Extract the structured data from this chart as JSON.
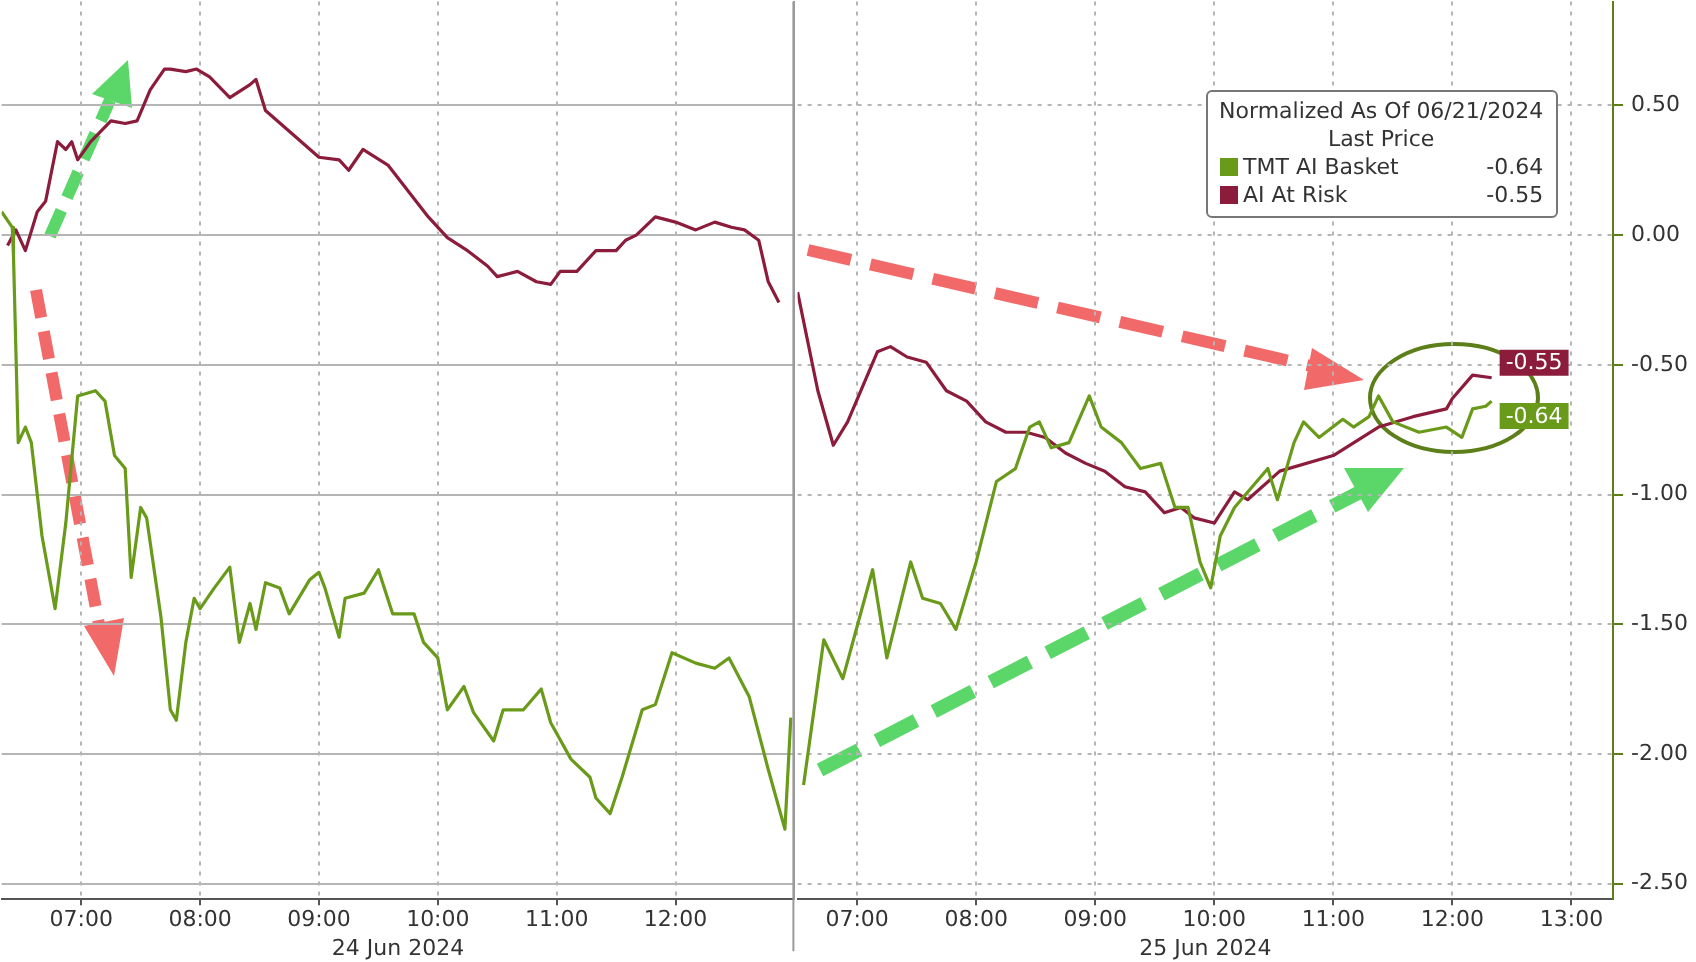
{
  "chart_data": [
    {
      "type": "line",
      "xlabel": "24 Jun 2024",
      "grid": true,
      "marker": "none",
      "line_style": "solid",
      "tick_labels": "x",
      "xlim": [
        6.33,
        13.0
      ],
      "ylim": [
        -2.56,
        0.9
      ],
      "xticks": [
        {
          "value": 7,
          "label": "07:00"
        },
        {
          "value": 8,
          "label": "08:00"
        },
        {
          "value": 9,
          "label": "09:00"
        },
        {
          "value": 10,
          "label": "10:00"
        },
        {
          "value": 11,
          "label": "11:00"
        },
        {
          "value": 12,
          "label": "12:00"
        }
      ],
      "yticks": [
        0.5,
        0,
        -0.5,
        -1,
        -1.5,
        -2,
        -2.5
      ],
      "series": [
        {
          "color": "#6a9a1a",
          "x": [
            6.33,
            6.42,
            6.43,
            6.47,
            6.53,
            6.58,
            6.67,
            6.78,
            6.87,
            6.97,
            7.12,
            7.2,
            7.28,
            7.37,
            7.42,
            7.5,
            7.55,
            7.67,
            7.75,
            7.8,
            7.88,
            7.95,
            8.0,
            8.12,
            8.25,
            8.33,
            8.42,
            8.47,
            8.55,
            8.67,
            8.75,
            8.92,
            9.0,
            9.05,
            9.17,
            9.22,
            9.38,
            9.5,
            9.62,
            9.8,
            9.88,
            10.0,
            10.08,
            10.22,
            10.3,
            10.47,
            10.55,
            10.72,
            10.87,
            10.95,
            11.12,
            11.28,
            11.33,
            11.45,
            11.55,
            11.72,
            11.83,
            11.97,
            12.17,
            12.33,
            12.45,
            12.62,
            12.78,
            12.92,
            12.97
          ],
          "values": [
            0.09,
            0.03,
            -0.08,
            -0.8,
            -0.74,
            -0.8,
            -1.16,
            -1.44,
            -1.11,
            -0.62,
            -0.6,
            -0.64,
            -0.85,
            -0.9,
            -1.32,
            -1.05,
            -1.09,
            -1.47,
            -1.83,
            -1.87,
            -1.57,
            -1.4,
            -1.44,
            -1.36,
            -1.28,
            -1.57,
            -1.42,
            -1.52,
            -1.34,
            -1.36,
            -1.46,
            -1.33,
            -1.3,
            -1.36,
            -1.55,
            -1.4,
            -1.38,
            -1.29,
            -1.46,
            -1.46,
            -1.57,
            -1.63,
            -1.83,
            -1.74,
            -1.84,
            -1.95,
            -1.83,
            -1.83,
            -1.75,
            -1.88,
            -2.02,
            -2.09,
            -2.17,
            -2.23,
            -2.09,
            -1.83,
            -1.81,
            -1.61,
            -1.65,
            -1.67,
            -1.63,
            -1.78,
            -2.06,
            -2.29,
            -1.86
          ]
        },
        {
          "color": "#8c1c3c",
          "x": [
            6.38,
            6.45,
            6.53,
            6.63,
            6.7,
            6.8,
            6.87,
            6.92,
            6.97,
            7.08,
            7.25,
            7.37,
            7.47,
            7.58,
            7.7,
            7.75,
            7.88,
            7.97,
            8.08,
            8.25,
            8.42,
            8.47,
            8.55,
            8.75,
            9.0,
            9.17,
            9.25,
            9.37,
            9.58,
            9.75,
            9.92,
            10.08,
            10.25,
            10.42,
            10.5,
            10.67,
            10.83,
            10.95,
            11.03,
            11.17,
            11.33,
            11.5,
            11.58,
            11.67,
            11.83,
            12.0,
            12.17,
            12.33,
            12.47,
            12.58,
            12.7,
            12.78,
            12.87
          ],
          "values": [
            -0.04,
            0.02,
            -0.06,
            0.09,
            0.13,
            0.36,
            0.33,
            0.36,
            0.29,
            0.36,
            0.44,
            0.43,
            0.44,
            0.56,
            0.64,
            0.64,
            0.63,
            0.64,
            0.61,
            0.53,
            0.58,
            0.6,
            0.48,
            0.4,
            0.3,
            0.29,
            0.25,
            0.33,
            0.27,
            0.17,
            0.07,
            -0.01,
            -0.06,
            -0.12,
            -0.16,
            -0.14,
            -0.18,
            -0.19,
            -0.14,
            -0.14,
            -0.06,
            -0.06,
            -0.02,
            0,
            0.07,
            0.05,
            0.02,
            0.05,
            0.03,
            0.02,
            -0.02,
            -0.18,
            -0.26
          ]
        }
      ]
    },
    {
      "type": "line",
      "xlabel": "25 Jun 2024",
      "legend_title": "Normalized As Of 06/21/2024\nLast Price",
      "legend": "top right",
      "grid": true,
      "marker": "none",
      "line_style": "solid",
      "xlim": [
        6.5,
        13.35
      ],
      "ylim": [
        -2.56,
        0.9
      ],
      "xticks": [
        {
          "value": 7,
          "label": "07:00"
        },
        {
          "value": 8,
          "label": "08:00"
        },
        {
          "value": 9,
          "label": "09:00"
        },
        {
          "value": 10,
          "label": "10:00"
        },
        {
          "value": 11,
          "label": "11:00"
        },
        {
          "value": 12,
          "label": "12:00"
        },
        {
          "value": 13,
          "label": "13:00"
        }
      ],
      "yticks": [
        {
          "value": 0.5,
          "label": "0.50"
        },
        {
          "value": 0,
          "label": "0.00"
        },
        {
          "value": -0.5,
          "label": "-0.50"
        },
        {
          "value": -1,
          "label": "-1.00"
        },
        {
          "value": -1.5,
          "label": "-1.50"
        },
        {
          "value": -2,
          "label": "-2.00"
        },
        {
          "value": -2.5,
          "label": "-2.50"
        }
      ],
      "series": [
        {
          "name": "TMT AI Basket",
          "color": "#6a9a1a",
          "x": [
            6.55,
            6.72,
            6.88,
            7.13,
            7.25,
            7.45,
            7.55,
            7.7,
            7.83,
            8.0,
            8.17,
            8.33,
            8.45,
            8.53,
            8.63,
            8.78,
            8.95,
            9.05,
            9.22,
            9.38,
            9.55,
            9.67,
            9.78,
            9.88,
            9.97,
            10.05,
            10.17,
            10.45,
            10.53,
            10.67,
            10.75,
            10.88,
            11.08,
            11.17,
            11.3,
            11.38,
            11.5,
            11.72,
            11.95,
            12.08,
            12.17,
            12.28,
            12.33
          ],
          "values": [
            -2.12,
            -1.56,
            -1.71,
            -1.29,
            -1.63,
            -1.26,
            -1.4,
            -1.42,
            -1.52,
            -1.26,
            -0.95,
            -0.9,
            -0.74,
            -0.72,
            -0.82,
            -0.8,
            -0.62,
            -0.74,
            -0.8,
            -0.9,
            -0.88,
            -1.05,
            -1.05,
            -1.26,
            -1.36,
            -1.16,
            -1.05,
            -0.9,
            -1.02,
            -0.8,
            -0.72,
            -0.78,
            -0.71,
            -0.74,
            -0.7,
            -0.62,
            -0.72,
            -0.76,
            -0.74,
            -0.78,
            -0.67,
            -0.66,
            -0.64
          ],
          "value_labels": [
            null,
            null,
            null,
            null,
            null,
            null,
            null,
            null,
            null,
            null,
            null,
            null,
            null,
            null,
            null,
            null,
            null,
            null,
            null,
            null,
            null,
            null,
            null,
            null,
            null,
            null,
            null,
            null,
            null,
            null,
            null,
            null,
            null,
            null,
            null,
            null,
            null,
            null,
            null,
            null,
            null,
            null,
            "-0.64"
          ]
        },
        {
          "name": "AI At Risk",
          "color": "#8c1c3c",
          "x": [
            6.5,
            6.67,
            6.8,
            6.92,
            7.17,
            7.28,
            7.42,
            7.58,
            7.75,
            7.92,
            8.08,
            8.25,
            8.42,
            8.58,
            8.75,
            8.92,
            9.08,
            9.25,
            9.42,
            9.58,
            9.72,
            9.83,
            10.0,
            10.17,
            10.28,
            10.55,
            11.0,
            11.38,
            11.67,
            11.95,
            12.0,
            12.17,
            12.33
          ],
          "values": [
            -0.22,
            -0.6,
            -0.81,
            -0.72,
            -0.45,
            -0.43,
            -0.47,
            -0.49,
            -0.6,
            -0.64,
            -0.72,
            -0.76,
            -0.76,
            -0.78,
            -0.84,
            -0.88,
            -0.91,
            -0.97,
            -0.99,
            -1.07,
            -1.05,
            -1.09,
            -1.11,
            -0.99,
            -1.02,
            -0.91,
            -0.85,
            -0.74,
            -0.7,
            -0.67,
            -0.63,
            -0.54,
            -0.55
          ],
          "value_labels": [
            null,
            null,
            null,
            null,
            null,
            null,
            null,
            null,
            null,
            null,
            null,
            null,
            null,
            null,
            null,
            null,
            null,
            null,
            null,
            null,
            null,
            null,
            null,
            null,
            null,
            null,
            null,
            null,
            null,
            null,
            null,
            null,
            "-0.55"
          ]
        }
      ]
    }
  ]
}
